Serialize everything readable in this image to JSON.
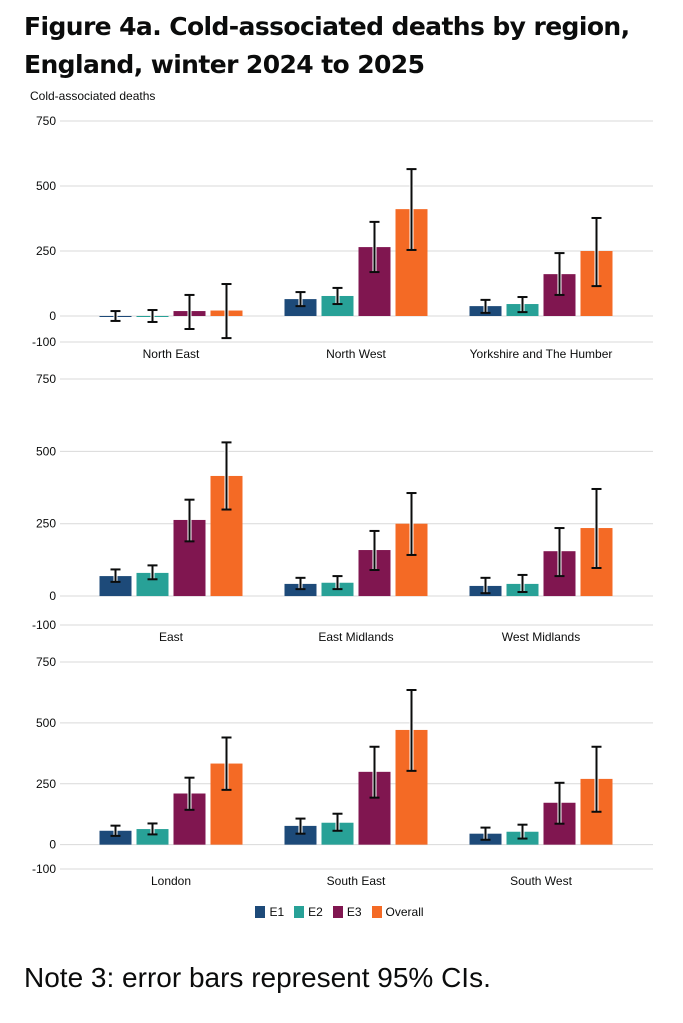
{
  "title": "Figure 4a. Cold-associated deaths by region, England, winter 2024 to 2025",
  "note": "Note 3: error bars represent 95% CIs.",
  "colors": {
    "E1": "#1d4a79",
    "E2": "#28a197",
    "E3": "#801650",
    "Overall": "#f46a25"
  },
  "chart_data": {
    "type": "bar",
    "title": "Figure 4a. Cold-associated deaths by region, England, winter 2024 to 2025",
    "ylabel": "Cold-associated deaths",
    "xlabel": "",
    "ylim": [
      -100,
      750
    ],
    "yticks": [
      750,
      500,
      250,
      0,
      -100
    ],
    "grid": true,
    "legend_position": "bottom",
    "error_bars": "95% CI",
    "series_names": [
      "E1",
      "E2",
      "E3",
      "Overall"
    ],
    "panels": [
      {
        "categories": [
          "North East",
          "North West",
          "Yorkshire and The Humber"
        ],
        "series": [
          {
            "name": "E1",
            "values": [
              0,
              65,
              38
            ],
            "ci_low": [
              -19,
              38,
              12
            ],
            "ci_high": [
              19,
              92,
              62
            ]
          },
          {
            "name": "E2",
            "values": [
              -2,
              77,
              46
            ],
            "ci_low": [
              -23,
              46,
              15
            ],
            "ci_high": [
              23,
              108,
              73
            ]
          },
          {
            "name": "E3",
            "values": [
              19,
              265,
              161
            ],
            "ci_low": [
              -50,
              169,
              81
            ],
            "ci_high": [
              81,
              362,
              242
            ]
          },
          {
            "name": "Overall",
            "values": [
              21,
              411,
              250
            ],
            "ci_low": [
              -85,
              254,
              115
            ],
            "ci_high": [
              123,
              565,
              377
            ]
          }
        ]
      },
      {
        "categories": [
          "East",
          "East Midlands",
          "West Midlands"
        ],
        "series": [
          {
            "name": "E1",
            "values": [
              69,
              42,
              35
            ],
            "ci_low": [
              49,
              24,
              10
            ],
            "ci_high": [
              92,
              63,
              63
            ]
          },
          {
            "name": "E2",
            "values": [
              80,
              46,
              42
            ],
            "ci_low": [
              58,
              24,
              14
            ],
            "ci_high": [
              106,
              69,
              73
            ]
          },
          {
            "name": "E3",
            "values": [
              263,
              159,
              155
            ],
            "ci_low": [
              189,
              90,
              69
            ],
            "ci_high": [
              333,
              225,
              235
            ]
          },
          {
            "name": "Overall",
            "values": [
              415,
              250,
              235
            ],
            "ci_low": [
              299,
              142,
              97
            ],
            "ci_high": [
              531,
              356,
              370
            ]
          }
        ]
      },
      {
        "categories": [
          "London",
          "South East",
          "South West"
        ],
        "series": [
          {
            "name": "E1",
            "values": [
              57,
              77,
              45
            ],
            "ci_low": [
              36,
              45,
              20
            ],
            "ci_high": [
              78,
              107,
              70
            ]
          },
          {
            "name": "E2",
            "values": [
              64,
              90,
              53
            ],
            "ci_low": [
              42,
              57,
              25
            ],
            "ci_high": [
              87,
              127,
              82
            ]
          },
          {
            "name": "E3",
            "values": [
              210,
              299,
              172
            ],
            "ci_low": [
              143,
              193,
              86
            ],
            "ci_high": [
              275,
              402,
              254
            ]
          },
          {
            "name": "Overall",
            "values": [
              333,
              471,
              270
            ],
            "ci_low": [
              225,
              303,
              135
            ],
            "ci_high": [
              440,
              635,
              402
            ]
          }
        ]
      }
    ]
  }
}
